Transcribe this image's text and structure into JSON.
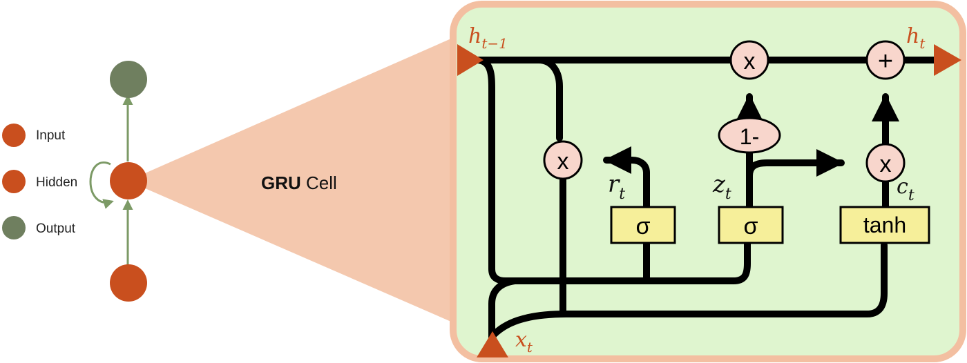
{
  "colors": {
    "input_node": "#c94f1e",
    "hidden_node": "#c94f1e",
    "output_node": "#6f7f5f",
    "arrow_green": "#7c9a66",
    "cone_fill": "#f3c2a5",
    "cell_fill": "#dff5cf",
    "cell_border": "#f3bfa1",
    "op_circle_fill": "#f8d6cc",
    "gate_box_fill": "#f6ef9a",
    "line_color": "#000000",
    "io_arrow": "#c94f1e",
    "io_label": "#c94f1e"
  },
  "legend": {
    "input_label": "Input",
    "hidden_label": "Hidden",
    "output_label": "Output"
  },
  "title": {
    "bold": "GRU",
    "rest": " Cell"
  },
  "cell": {
    "h_prev_label": "h",
    "h_prev_sub": "t−1",
    "h_out_label": "h",
    "h_out_sub": "t",
    "x_label": "x",
    "x_sub": "t",
    "r_label": "r",
    "r_sub": "t",
    "z_label": "z",
    "z_sub": "t",
    "c_label": "c",
    "c_sub": "t",
    "op_multiply_reset": "x",
    "op_multiply_update": "x",
    "op_multiply_candidate": "x",
    "op_add": "+",
    "one_minus": "1-",
    "gate_reset": "σ",
    "gate_update": "σ",
    "gate_candidate": "tanh"
  }
}
